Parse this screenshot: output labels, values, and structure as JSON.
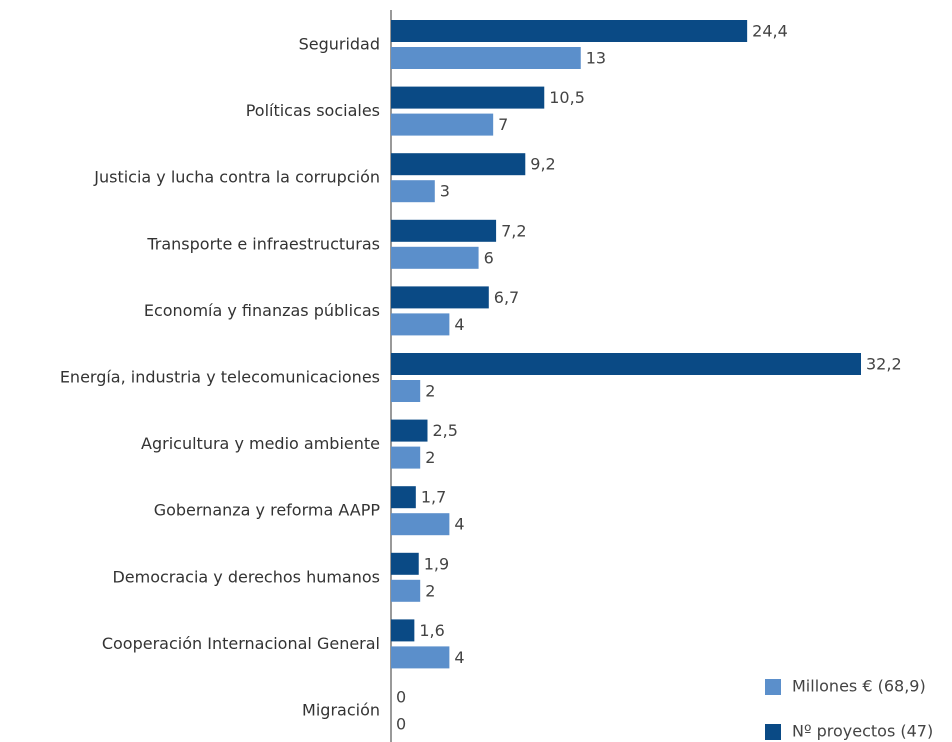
{
  "chart_data": {
    "type": "hbar",
    "categories": [
      "Seguridad",
      "Políticas sociales",
      "Justicia y lucha contra la corrupción",
      "Transporte e infraestructuras",
      "Economía y finanzas públicas",
      "Energía, industria y telecomunicaciones",
      "Agricultura y  medio ambiente",
      "Gobernanza y reforma AAPP",
      "Democracia y derechos humanos",
      "Cooperación Internacional General",
      "Migración"
    ],
    "series": [
      {
        "name": "Nº proyectos (47)",
        "color": "#0a4a85",
        "values": [
          24.4,
          10.5,
          9.2,
          7.2,
          6.7,
          32.2,
          2.5,
          1.7,
          1.9,
          1.6,
          0
        ],
        "value_labels": [
          "24,4",
          "10,5",
          "9,2",
          "7,2",
          "6,7",
          "32,2",
          "2,5",
          "1,7",
          "1,9",
          "1,6",
          "0"
        ]
      },
      {
        "name": "Millones € (68,9)",
        "color": "#5b8fcb",
        "values": [
          13,
          7,
          3,
          6,
          4,
          2,
          2,
          4,
          2,
          4,
          0
        ]
      }
    ]
  }
}
